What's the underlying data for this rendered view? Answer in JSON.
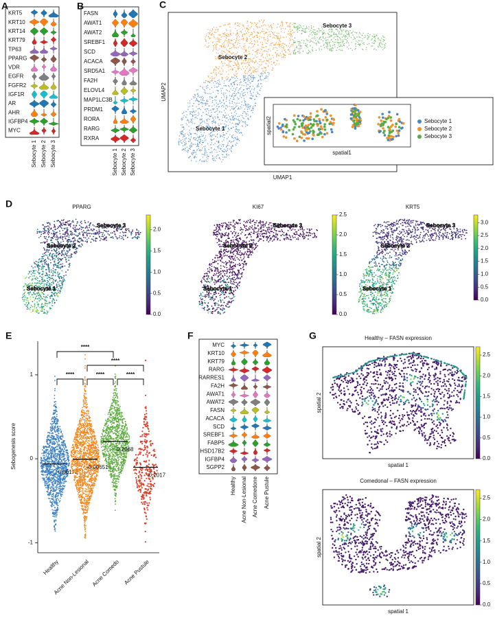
{
  "chart_data": [
    {
      "type": "stacked-violin",
      "panel_label": "A",
      "categories": [
        "KRT5",
        "KRT10",
        "KRT14",
        "KRT79",
        "TP63",
        "PPARG",
        "VDR",
        "EGFR",
        "FGFR2",
        "IGF1R",
        "AR",
        "AHR",
        "IGFBP4",
        "MYC"
      ],
      "groups": [
        "Sebocyte 1",
        "Sebocyte 2",
        "Sebocyte 3"
      ],
      "palette": [
        "#1f77b4",
        "#ff7f0e",
        "#2ca02c",
        "#d62728",
        "#9467bd",
        "#8c564b",
        "#e377c2",
        "#7f7f7f",
        "#bcbd22",
        "#17becf"
      ]
    },
    {
      "type": "stacked-violin",
      "panel_label": "B",
      "categories": [
        "FASN",
        "AWAT1",
        "AWAT2",
        "SREBF1",
        "SCD",
        "ACACA",
        "SRD5A1",
        "FA2H",
        "ELOVL4",
        "MAP1LC3B",
        "PRDM1",
        "RORA",
        "RARG",
        "RXRA"
      ],
      "groups": [
        "Sebocyte 1",
        "Sebocyte 2",
        "Sebocyte 3"
      ],
      "palette": [
        "#1f77b4",
        "#ff7f0e",
        "#2ca02c",
        "#d62728",
        "#9467bd",
        "#8c564b",
        "#e377c2",
        "#7f7f7f",
        "#bcbd22",
        "#17becf"
      ]
    },
    {
      "type": "embedding",
      "panel_label": "C",
      "xlabel": "UMAP1",
      "ylabel": "UMAP2",
      "series": [
        {
          "name": "Sebocyte 1",
          "color": "#4a86c0"
        },
        {
          "name": "Sebocyte 2",
          "color": "#f0922b"
        },
        {
          "name": "Sebocyte 3",
          "color": "#55ab48"
        }
      ],
      "inset": {
        "xlabel": "spatial1",
        "ylabel": "spatial2"
      },
      "legend": "inset-right"
    },
    {
      "type": "feature-embedding",
      "panel_label": "D",
      "colormap": "viridis",
      "cluster_labels": [
        "Sebocyte 1",
        "Sebocyte 2",
        "Sebocyte 3"
      ],
      "plots": [
        {
          "title": "PPARG",
          "clim": [
            0,
            2.35
          ],
          "cticks": [
            {
              "value": 0,
              "label": "0.0"
            },
            0.5,
            {
              "value": 1,
              "label": "1.0"
            },
            1.5,
            {
              "value": 2,
              "label": "2.0"
            }
          ]
        },
        {
          "title": "KI67",
          "clim": [
            0,
            2.5
          ],
          "cticks": [
            {
              "value": 0,
              "label": "0.0"
            },
            0.5,
            {
              "value": 1,
              "label": "1.0"
            },
            1.5,
            {
              "value": 2,
              "label": "2.0"
            },
            2.5
          ]
        },
        {
          "title": "KRT5",
          "clim": [
            0,
            3.3
          ],
          "cticks": [
            {
              "value": 0,
              "label": "0.0"
            },
            0.5,
            {
              "value": 1,
              "label": "1.0"
            },
            1.5,
            {
              "value": 2,
              "label": "2.0"
            },
            2.5,
            {
              "value": 3,
              "label": "3.0"
            }
          ]
        }
      ]
    },
    {
      "type": "strip",
      "panel_label": "E",
      "ylabel": "Sebogenesis score",
      "categories": [
        "Healthy",
        "Acne Non-Lesional",
        "Acne Comedo",
        "Acne Pustule"
      ],
      "colors": [
        "#3a7fc1",
        "#f58518",
        "#5aab3c",
        "#d9412b"
      ],
      "values": [
        -0.06172,
        -0.006516,
        0.2068,
        -0.1017
      ],
      "ylim": [
        -1.12,
        1.4
      ],
      "yticks": [
        -1,
        0,
        1
      ],
      "annotations": [
        {
          "label": "****",
          "from": "Healthy",
          "to": "Acne Comedo"
        },
        {
          "label": "****",
          "from": "Healthy",
          "to": "Acne Non-Lesional"
        },
        {
          "label": "****",
          "from": "Acne Non-Lesional",
          "to": "Acne Pustule"
        },
        {
          "label": "****",
          "from": "Acne Non-Lesional",
          "to": "Acne Comedo"
        },
        {
          "label": "****",
          "from": "Acne Comedo",
          "to": "Acne Pustule"
        }
      ]
    },
    {
      "type": "stacked-violin",
      "panel_label": "F",
      "categories": [
        "MYC",
        "KRT10",
        "KRT79",
        "RARG",
        "RARRES1",
        "FA2H",
        "AWAT1",
        "AWAT2",
        "FASN",
        "ACACA",
        "SCD",
        "SREBF1",
        "FABP5",
        "HSD17B2",
        "IGFBP4",
        "SGPP2"
      ],
      "groups": [
        "Healthy",
        "Acne Non-Lesional",
        "Acne Comedone",
        "Acne Pustule"
      ],
      "palette": [
        "#1f77b4",
        "#ff7f0e",
        "#2ca02c",
        "#d62728",
        "#9467bd",
        "#8c564b",
        "#e377c2",
        "#7f7f7f",
        "#bcbd22",
        "#17becf"
      ]
    },
    {
      "type": "spatial-feature",
      "panel_label": "G",
      "colormap": "viridis",
      "xlabel": "spatial 1",
      "ylabel": "spatial 2",
      "clim": [
        0,
        2.7
      ],
      "cticks": [
        {
          "value": 0,
          "label": "0.0"
        },
        0.5,
        {
          "value": 1,
          "label": "1.0"
        },
        1.5,
        {
          "value": 2,
          "label": "2.0"
        },
        2.5
      ],
      "plots": [
        {
          "title": "Healthy – FASN expression"
        },
        {
          "title": "Comedonal – FASN expression"
        }
      ]
    }
  ]
}
